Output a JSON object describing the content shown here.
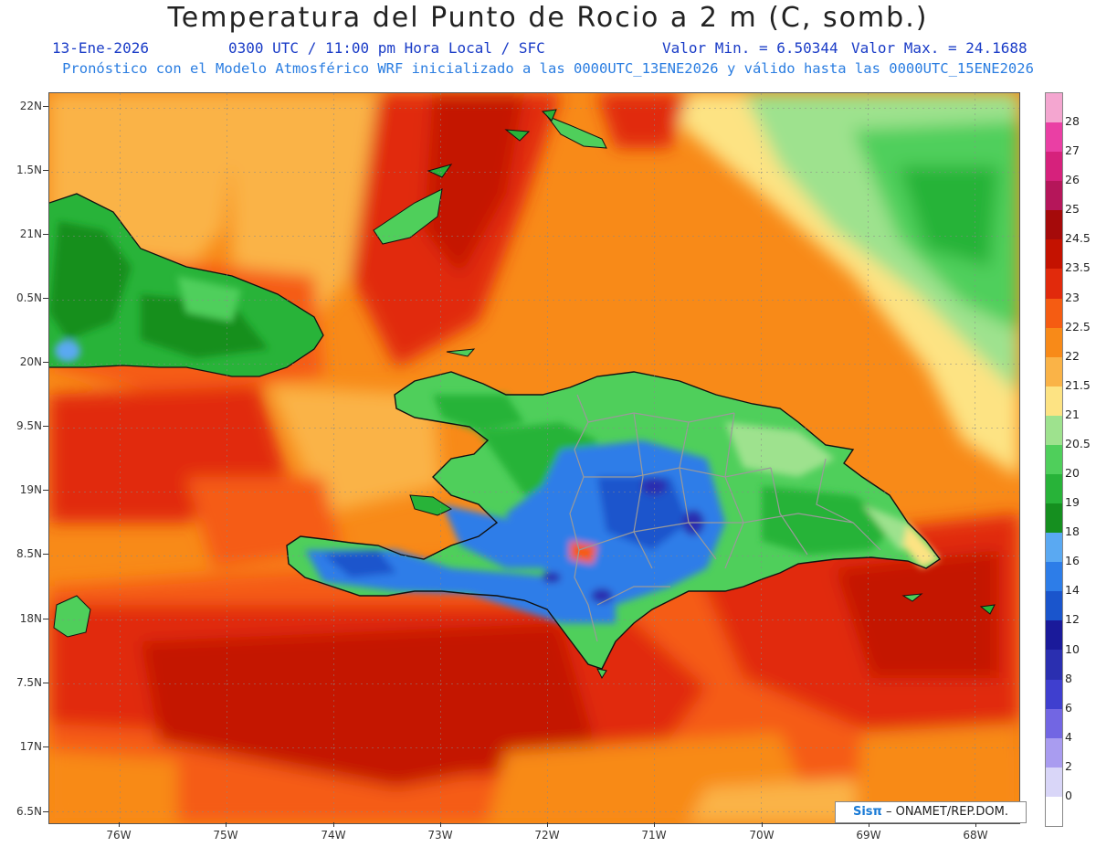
{
  "title": "Temperatura del Punto de Rocio a 2 m (C, somb.)",
  "date": "13-Ene-2026",
  "time": "0300 UTC / 11:00 pm Hora Local / SFC",
  "min_label": "Valor Min. = 6.50344",
  "max_label": "Valor Max. = 24.1688",
  "model_line": "Pronóstico con el Modelo Atmosférico WRF inicializado a las 0000UTC_13ENE2026 y válido hasta las  0000UTC_15ENE2026",
  "credit_sis": "Sisπ",
  "credit_org": "– ONAMET/REP.DOM.",
  "lat_labels": [
    "22N",
    "1.5N",
    "21N",
    "0.5N",
    "20N",
    "9.5N",
    "19N",
    "8.5N",
    "18N",
    "7.5N",
    "17N",
    "6.5N"
  ],
  "lon_labels": [
    "76W",
    "75W",
    "74W",
    "73W",
    "72W",
    "71W",
    "70W",
    "69W",
    "68W"
  ],
  "colorbar": {
    "labels": [
      "28",
      "27",
      "26",
      "25",
      "24.5",
      "23.5",
      "23",
      "22.5",
      "22",
      "21.5",
      "21",
      "20.5",
      "20",
      "19",
      "18",
      "16",
      "14",
      "12",
      "10",
      "8",
      "6",
      "4",
      "2",
      "0"
    ],
    "colors": [
      "#f4a6d0",
      "#ea3fa4",
      "#d6217c",
      "#b5165a",
      "#a50a0a",
      "#c41200",
      "#e12a0c",
      "#f55c12",
      "#f88a18",
      "#fab347",
      "#fde383",
      "#9ee28e",
      "#4fcf5b",
      "#28b339",
      "#158f1f",
      "#5aa9f2",
      "#2d7de8",
      "#1a55cc",
      "#1a1a9a",
      "#2a2fb0",
      "#3f3fcf",
      "#7266e3",
      "#a99cf0",
      "#d9d6f8",
      "#ffffff"
    ]
  }
}
